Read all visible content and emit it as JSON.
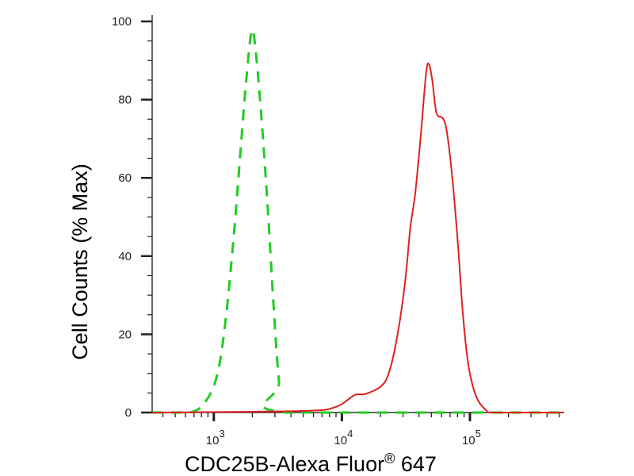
{
  "chart_data": {
    "type": "line",
    "title": "",
    "xlabel": "CDC25B-Alexa Fluor",
    "xlabel_mark": "®",
    "xlabel_suffix": " 647",
    "ylabel": "Cell Counts (% Max)",
    "x_scale": "log",
    "xlim": [
      330,
      530000
    ],
    "ylim": [
      0,
      100
    ],
    "y_ticks": [
      0,
      20,
      40,
      60,
      80,
      100
    ],
    "x_ticks": [
      {
        "value": 1000,
        "base": "10",
        "exp": "3"
      },
      {
        "value": 10000,
        "base": "10",
        "exp": "4"
      },
      {
        "value": 100000,
        "base": "10",
        "exp": "5"
      }
    ],
    "grid": false,
    "series": [
      {
        "color": "#22cc22",
        "style": "dashed",
        "x": [
          330,
          650,
          870,
          1070,
          1240,
          1430,
          1600,
          1770,
          1960,
          2100,
          2360,
          2640,
          2920,
          3230,
          3620,
          530000
        ],
        "y": [
          0,
          0,
          3,
          10,
          24,
          45,
          65,
          83,
          97,
          94,
          75,
          52,
          28,
          8,
          0,
          0
        ]
      },
      {
        "color": "#e02020",
        "style": "solid",
        "x": [
          330,
          4830,
          8900,
          12600,
          15100,
          20200,
          23300,
          26900,
          31000,
          34300,
          37300,
          41100,
          45500,
          48000,
          50900,
          54800,
          61600,
          66100,
          73100,
          80900,
          88000,
          97200,
          112000,
          134000,
          156000,
          530000
        ],
        "y": [
          0,
          0.4,
          1.4,
          4.5,
          4.7,
          6.7,
          10.2,
          19,
          32.7,
          47.5,
          55.7,
          70,
          86.8,
          89,
          84.8,
          76.6,
          75.2,
          71.7,
          59.5,
          42.3,
          25.4,
          12.2,
          4.1,
          0.6,
          0,
          0
        ]
      }
    ]
  }
}
